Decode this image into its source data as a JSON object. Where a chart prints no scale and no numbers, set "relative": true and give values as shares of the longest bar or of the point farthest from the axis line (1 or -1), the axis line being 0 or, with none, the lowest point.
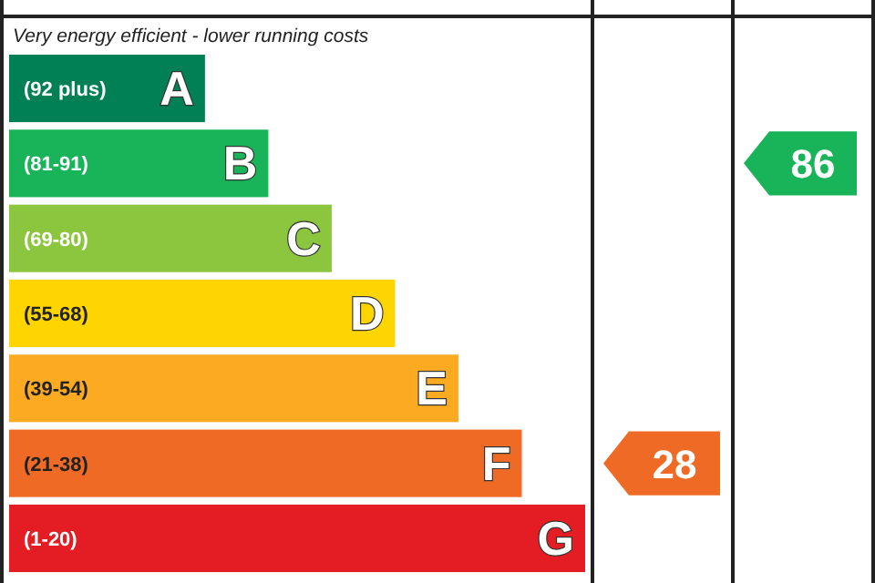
{
  "chart_data": {
    "type": "bar",
    "orientation": "horizontal",
    "relative": true,
    "subtitle": "Very energy efficient - lower running costs",
    "categories": [
      "A",
      "B",
      "C",
      "D",
      "E",
      "F",
      "G"
    ],
    "values": [
      0.34,
      0.45,
      0.56,
      0.67,
      0.78,
      0.89,
      1
    ],
    "colors": [
      "#008054",
      "#19b459",
      "#8cc63f",
      "#ffd500",
      "#fcaa22",
      "#ef6b25",
      "#e31d23"
    ],
    "annotations": [
      "(92 plus)",
      "(81-91)",
      "(69-80)",
      "(55-68)",
      "(39-54)",
      "(21-38)",
      "(1-20)",
      "28",
      "86"
    ],
    "legend": false
  }
}
